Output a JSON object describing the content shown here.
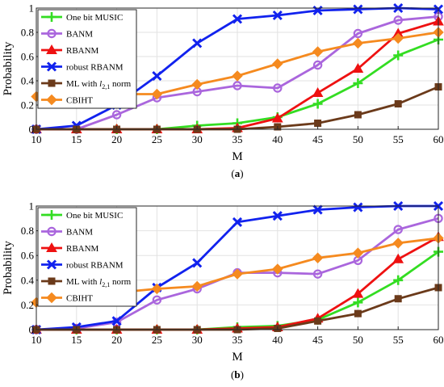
{
  "chart_data": [
    {
      "type": "line",
      "panel_label": "(a)",
      "xlabel": "M",
      "ylabel": "Probability",
      "x": [
        10,
        15,
        20,
        25,
        30,
        35,
        40,
        45,
        50,
        55,
        60
      ],
      "xlim": [
        10,
        60
      ],
      "ylim": [
        0,
        1
      ],
      "xticks": [
        "10",
        "15",
        "20",
        "25",
        "30",
        "35",
        "40",
        "45",
        "50",
        "55",
        "60"
      ],
      "yticks": [
        "0",
        "0.2",
        "0.4",
        "0.6",
        "0.8",
        "1"
      ],
      "grid": true,
      "legend_position": "top-left",
      "series": [
        {
          "name": "One bit MUSIC",
          "color": "#33dd22",
          "marker": "plus",
          "values": [
            0,
            0,
            0,
            0,
            0.03,
            0.05,
            0.1,
            0.21,
            0.38,
            0.61,
            0.74
          ]
        },
        {
          "name": "BANM",
          "color": "#aa66dd",
          "marker": "circle",
          "values": [
            0,
            0,
            0.12,
            0.26,
            0.31,
            0.36,
            0.34,
            0.53,
            0.79,
            0.9,
            0.93
          ]
        },
        {
          "name": "RBANM",
          "color": "#ee1111",
          "marker": "triangle",
          "values": [
            0,
            0,
            0,
            0,
            0,
            0.01,
            0.09,
            0.3,
            0.5,
            0.79,
            0.89
          ]
        },
        {
          "name": "robust RBANM",
          "color": "#1122ee",
          "marker": "x",
          "values": [
            0,
            0.03,
            0.2,
            0.44,
            0.71,
            0.91,
            0.94,
            0.98,
            0.99,
            1.0,
            0.99
          ]
        },
        {
          "name": "ML with l_{2,1} norm",
          "name_base": "ML with ",
          "name_var": "l",
          "name_sub": "2,1",
          "name_tail": " norm",
          "color": "#6b3a1a",
          "marker": "square",
          "values": [
            0,
            0,
            0,
            0,
            0,
            0,
            0.02,
            0.05,
            0.12,
            0.21,
            0.35
          ]
        },
        {
          "name": "CBIHT",
          "color": "#f58a1f",
          "marker": "diamond",
          "values": [
            0.27,
            0.28,
            0.29,
            0.29,
            0.37,
            0.44,
            0.54,
            0.64,
            0.71,
            0.75,
            0.8
          ]
        }
      ]
    },
    {
      "type": "line",
      "panel_label": "(b)",
      "xlabel": "M",
      "ylabel": "Probability",
      "x": [
        10,
        15,
        20,
        25,
        30,
        35,
        40,
        45,
        50,
        55,
        60
      ],
      "xlim": [
        10,
        60
      ],
      "ylim": [
        0,
        1
      ],
      "xticks": [
        "10",
        "15",
        "20",
        "25",
        "30",
        "35",
        "40",
        "45",
        "50",
        "55",
        "60"
      ],
      "yticks": [
        "0",
        "0.2",
        "0.4",
        "0.6",
        "0.8",
        "1"
      ],
      "grid": true,
      "legend_position": "top-left",
      "series": [
        {
          "name": "One bit MUSIC",
          "color": "#33dd22",
          "marker": "plus",
          "values": [
            0,
            0,
            0,
            0,
            0,
            0.02,
            0.03,
            0.08,
            0.22,
            0.4,
            0.63
          ]
        },
        {
          "name": "BANM",
          "color": "#aa66dd",
          "marker": "circle",
          "values": [
            0,
            0.01,
            0.06,
            0.24,
            0.33,
            0.46,
            0.46,
            0.45,
            0.56,
            0.81,
            0.9
          ]
        },
        {
          "name": "RBANM",
          "color": "#ee1111",
          "marker": "triangle",
          "values": [
            0,
            0,
            0,
            0,
            0,
            0.01,
            0.02,
            0.09,
            0.29,
            0.57,
            0.75
          ]
        },
        {
          "name": "robust RBANM",
          "color": "#1122ee",
          "marker": "x",
          "values": [
            0,
            0.02,
            0.07,
            0.34,
            0.54,
            0.87,
            0.92,
            0.97,
            0.99,
            1.0,
            1.0
          ]
        },
        {
          "name": "ML with l_{2,1} norm",
          "name_base": "ML with ",
          "name_var": "l",
          "name_sub": "2,1",
          "name_tail": " norm",
          "color": "#6b3a1a",
          "marker": "square",
          "values": [
            0,
            0,
            0,
            0,
            0,
            0,
            0.01,
            0.07,
            0.13,
            0.25,
            0.34
          ]
        },
        {
          "name": "CBIHT",
          "color": "#f58a1f",
          "marker": "diamond",
          "values": [
            0.22,
            0.27,
            0.3,
            0.33,
            0.35,
            0.45,
            0.49,
            0.58,
            0.62,
            0.7,
            0.74
          ]
        }
      ]
    }
  ]
}
